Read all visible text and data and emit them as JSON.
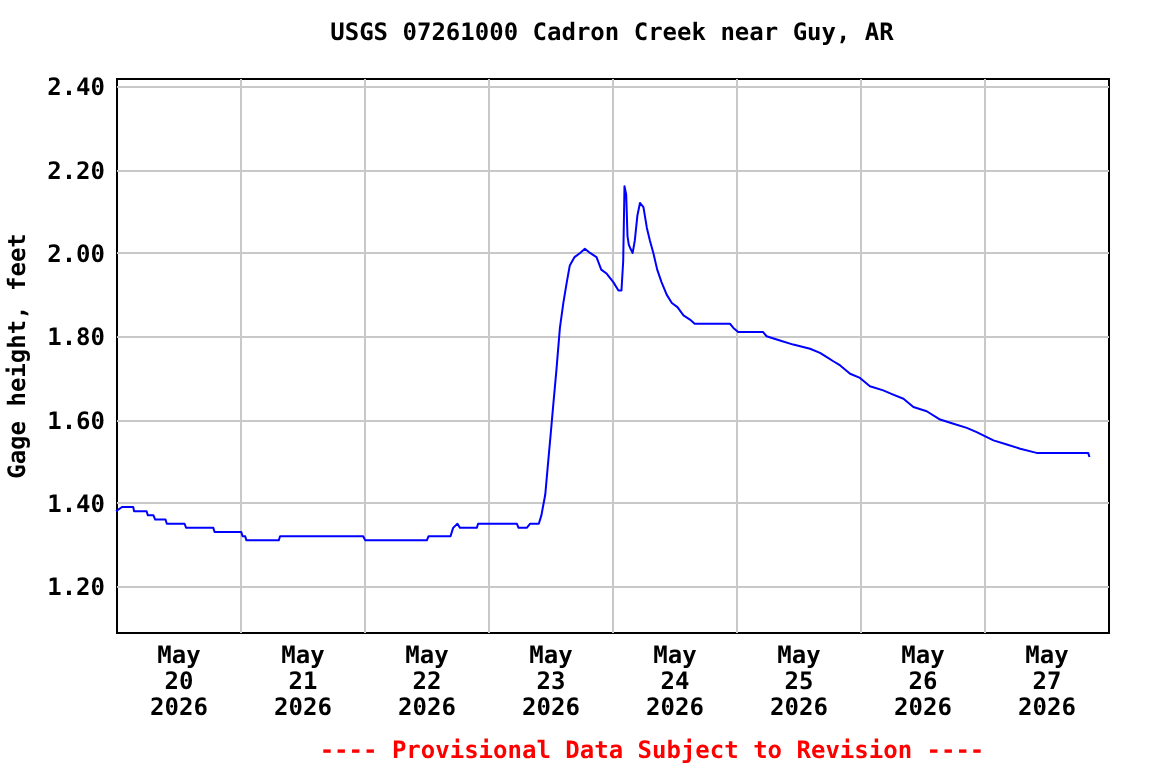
{
  "chart_data": {
    "type": "line",
    "title": "USGS 07261000 Cadron Creek near Guy, AR",
    "ylabel": "Gage height, feet",
    "annotations": [
      "---- Provisional Data Subject to Revision ----"
    ],
    "color": "#0000ff",
    "grid": true,
    "x": [
      "2026-05-20T00:00",
      "2026-05-20T01:10",
      "2026-05-20T03:20",
      "2026-05-20T03:30",
      "2026-05-20T05:55",
      "2026-05-20T06:10",
      "2026-05-20T07:15",
      "2026-05-20T07:35",
      "2026-05-20T09:35",
      "2026-05-20T09:50",
      "2026-05-20T13:15",
      "2026-05-20T13:35",
      "2026-05-20T18:50",
      "2026-05-20T19:05",
      "2026-05-21T00:15",
      "2026-05-21T00:30",
      "2026-05-21T01:00",
      "2026-05-21T01:15",
      "2026-05-21T07:30",
      "2026-05-21T07:45",
      "2026-05-21T23:50",
      "2026-05-22T00:15",
      "2026-05-22T12:10",
      "2026-05-22T12:30",
      "2026-05-22T16:45",
      "2026-05-22T17:15",
      "2026-05-22T18:05",
      "2026-05-22T18:35",
      "2026-05-22T21:50",
      "2026-05-22T22:05",
      "2026-05-23T05:35",
      "2026-05-23T05:55",
      "2026-05-23T07:30",
      "2026-05-23T08:10",
      "2026-05-23T09:50",
      "2026-05-23T10:20",
      "2026-05-23T11:05",
      "2026-05-23T11:35",
      "2026-05-23T12:10",
      "2026-05-23T12:40",
      "2026-05-23T13:15",
      "2026-05-23T13:55",
      "2026-05-23T14:35",
      "2026-05-23T15:15",
      "2026-05-23T15:50",
      "2026-05-23T16:45",
      "2026-05-23T17:50",
      "2026-05-23T18:45",
      "2026-05-23T19:45",
      "2026-05-23T21:00",
      "2026-05-23T21:55",
      "2026-05-23T23:00",
      "2026-05-24T00:15",
      "2026-05-24T01:15",
      "2026-05-24T01:50",
      "2026-05-24T02:10",
      "2026-05-24T02:25",
      "2026-05-24T02:45",
      "2026-05-24T03:00",
      "2026-05-24T03:15",
      "2026-05-24T03:35",
      "2026-05-24T04:00",
      "2026-05-24T04:25",
      "2026-05-24T04:55",
      "2026-05-24T05:25",
      "2026-05-24T06:05",
      "2026-05-24T06:45",
      "2026-05-24T07:20",
      "2026-05-24T08:00",
      "2026-05-24T08:45",
      "2026-05-24T09:35",
      "2026-05-24T10:35",
      "2026-05-24T11:35",
      "2026-05-24T12:40",
      "2026-05-24T13:50",
      "2026-05-24T15:05",
      "2026-05-24T16:00",
      "2026-05-24T22:50",
      "2026-05-24T23:30",
      "2026-05-25T00:25",
      "2026-05-25T05:15",
      "2026-05-25T05:55",
      "2026-05-25T08:30",
      "2026-05-25T11:05",
      "2026-05-25T14:20",
      "2026-05-25T16:15",
      "2026-05-25T17:35",
      "2026-05-25T18:50",
      "2026-05-25T20:10",
      "2026-05-25T22:05",
      "2026-05-26T00:00",
      "2026-05-26T01:55",
      "2026-05-26T04:30",
      "2026-05-26T06:25",
      "2026-05-26T08:25",
      "2026-05-26T10:20",
      "2026-05-26T12:55",
      "2026-05-26T15:30",
      "2026-05-26T18:05",
      "2026-05-26T20:40",
      "2026-05-26T22:35",
      "2026-05-27T01:50",
      "2026-05-27T04:25",
      "2026-05-27T07:00",
      "2026-05-27T10:10",
      "2026-05-27T20:10",
      "2026-05-27T20:25"
    ],
    "values": [
      1.38,
      1.39,
      1.39,
      1.38,
      1.38,
      1.37,
      1.37,
      1.36,
      1.36,
      1.35,
      1.35,
      1.34,
      1.34,
      1.33,
      1.33,
      1.32,
      1.32,
      1.31,
      1.31,
      1.32,
      1.32,
      1.31,
      1.31,
      1.32,
      1.32,
      1.34,
      1.35,
      1.34,
      1.34,
      1.35,
      1.35,
      1.34,
      1.34,
      1.35,
      1.35,
      1.37,
      1.42,
      1.49,
      1.57,
      1.64,
      1.72,
      1.82,
      1.88,
      1.93,
      1.97,
      1.99,
      2.0,
      2.01,
      2.0,
      1.99,
      1.96,
      1.95,
      1.93,
      1.91,
      1.91,
      1.98,
      2.16,
      2.14,
      2.04,
      2.02,
      2.01,
      2.0,
      2.03,
      2.09,
      2.12,
      2.11,
      2.06,
      2.03,
      2.0,
      1.96,
      1.93,
      1.9,
      1.88,
      1.87,
      1.85,
      1.84,
      1.83,
      1.83,
      1.82,
      1.81,
      1.81,
      1.8,
      1.79,
      1.78,
      1.77,
      1.76,
      1.75,
      1.74,
      1.73,
      1.71,
      1.7,
      1.68,
      1.67,
      1.66,
      1.65,
      1.63,
      1.62,
      1.6,
      1.59,
      1.58,
      1.57,
      1.55,
      1.54,
      1.53,
      1.52,
      1.52,
      1.51
    ],
    "xlim": [
      "2026-05-20T00:00",
      "2026-05-28T00:00"
    ],
    "xticks": [
      {
        "value": "2026-05-20T12:00",
        "label": "May\n20\n2026"
      },
      {
        "value": "2026-05-21T00:00",
        "label": null
      },
      {
        "value": "2026-05-21T12:00",
        "label": "May\n21\n2026"
      },
      {
        "value": "2026-05-22T00:00",
        "label": null
      },
      {
        "value": "2026-05-22T12:00",
        "label": "May\n22\n2026"
      },
      {
        "value": "2026-05-23T00:00",
        "label": null
      },
      {
        "value": "2026-05-23T12:00",
        "label": "May\n23\n2026"
      },
      {
        "value": "2026-05-24T00:00",
        "label": null
      },
      {
        "value": "2026-05-24T12:00",
        "label": "May\n24\n2026"
      },
      {
        "value": "2026-05-25T00:00",
        "label": null
      },
      {
        "value": "2026-05-25T12:00",
        "label": "May\n25\n2026"
      },
      {
        "value": "2026-05-26T00:00",
        "label": null
      },
      {
        "value": "2026-05-26T12:00",
        "label": "May\n26\n2026"
      },
      {
        "value": "2026-05-27T00:00",
        "label": null
      },
      {
        "value": "2026-05-27T12:00",
        "label": "May\n27\n2026"
      }
    ],
    "ylim": [
      1.09,
      2.42
    ],
    "yticks": [
      {
        "value": 1.2,
        "label": "1.20"
      },
      {
        "value": 1.4,
        "label": "1.40"
      },
      {
        "value": 1.6,
        "label": "1.60"
      },
      {
        "value": 1.8,
        "label": "1.80"
      },
      {
        "value": 2.0,
        "label": "2.00"
      },
      {
        "value": 2.2,
        "label": "2.20"
      },
      {
        "value": 2.4,
        "label": "2.40"
      }
    ]
  }
}
